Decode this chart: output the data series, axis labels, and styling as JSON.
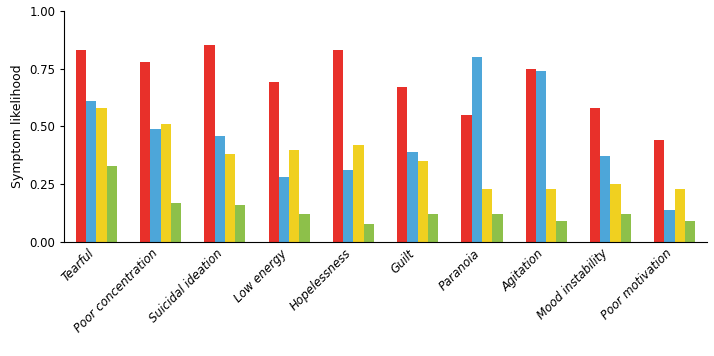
{
  "categories": [
    "Tearful",
    "Poor concentration",
    "Suicidal ideation",
    "Low energy",
    "Hopelessness",
    "Guilt",
    "Paranoia",
    "Agitation",
    "Mood instability",
    "Poor motivation"
  ],
  "series": {
    "red": [
      0.83,
      0.78,
      0.85,
      0.69,
      0.83,
      0.67,
      0.55,
      0.75,
      0.58,
      0.44
    ],
    "blue": [
      0.61,
      0.49,
      0.46,
      0.28,
      0.31,
      0.39,
      0.8,
      0.74,
      0.37,
      0.14
    ],
    "yellow": [
      0.58,
      0.51,
      0.38,
      0.4,
      0.42,
      0.35,
      0.23,
      0.23,
      0.25,
      0.23
    ],
    "green": [
      0.33,
      0.17,
      0.16,
      0.12,
      0.08,
      0.12,
      0.12,
      0.09,
      0.12,
      0.09
    ]
  },
  "colors": {
    "red": "#e8302a",
    "blue": "#4da6d9",
    "yellow": "#f0d020",
    "green": "#8dc04a"
  },
  "ylabel": "Symptom likelihood",
  "ylim": [
    0,
    1.0
  ],
  "yticks": [
    0,
    0.25,
    0.5,
    0.75,
    1.0
  ],
  "bar_width": 0.16,
  "series_keys": [
    "red",
    "blue",
    "yellow",
    "green"
  ]
}
